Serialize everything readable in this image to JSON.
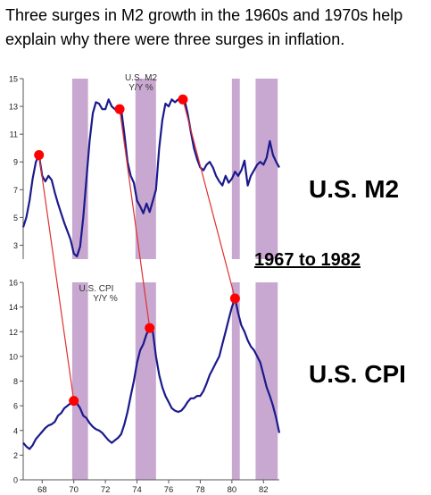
{
  "headline": "Three surges in M2 growth in the 1960s and 1970s help explain why there were three surges in inflation.",
  "labels": {
    "m2": "U.S. M2",
    "cpi": "U.S. CPI",
    "period": "1967 to 1982"
  },
  "colors": {
    "line": "#1a1a8c",
    "recession": "#c8a8d0",
    "marker": "#ff0000",
    "connector": "#e03030"
  },
  "chart_data": [
    {
      "type": "line",
      "panel": "top",
      "annotation": [
        "U.S. M2",
        "Y/Y %"
      ],
      "ylim": [
        2,
        15
      ],
      "yticks": [
        3,
        5,
        7,
        9,
        11,
        13,
        15
      ],
      "xlim": [
        66.8,
        83
      ],
      "recession_bands": [
        [
          69.9,
          70.9
        ],
        [
          73.9,
          75.2
        ],
        [
          80.0,
          80.5
        ],
        [
          81.5,
          82.9
        ]
      ],
      "series": [
        {
          "x": [
            66.8,
            67.0,
            67.2,
            67.4,
            67.6,
            67.8,
            68.0,
            68.2,
            68.4,
            68.6,
            68.8,
            69.0,
            69.2,
            69.4,
            69.6,
            69.8,
            70.0,
            70.2,
            70.4,
            70.6,
            70.8,
            71.0,
            71.2,
            71.4,
            71.6,
            71.8,
            72.0,
            72.2,
            72.4,
            72.6,
            72.8,
            73.0,
            73.2,
            73.4,
            73.6,
            73.8,
            74.0,
            74.2,
            74.4,
            74.6,
            74.8,
            75.0,
            75.2,
            75.4,
            75.6,
            75.8,
            76.0,
            76.2,
            76.4,
            76.6,
            76.8,
            77.0,
            77.2,
            77.4,
            77.6,
            77.8,
            78.0,
            78.2,
            78.4,
            78.6,
            78.8,
            79.0,
            79.2,
            79.4,
            79.6,
            79.8,
            80.0,
            80.2,
            80.4,
            80.6,
            80.8,
            81.0,
            81.2,
            81.4,
            81.6,
            81.8,
            82.0,
            82.2,
            82.4,
            82.6,
            82.8,
            83.0
          ],
          "y": [
            4.3,
            5.0,
            6.2,
            7.8,
            9.0,
            9.5,
            8.0,
            7.6,
            8.0,
            7.7,
            6.8,
            6.0,
            5.3,
            4.6,
            4.0,
            3.4,
            2.4,
            2.2,
            2.9,
            5.0,
            7.8,
            10.5,
            12.5,
            13.3,
            13.2,
            12.8,
            12.8,
            13.5,
            13.0,
            12.8,
            12.7,
            12.8,
            11.0,
            9.0,
            8.0,
            7.5,
            6.2,
            5.8,
            5.3,
            6.0,
            5.4,
            6.2,
            7.0,
            10.0,
            12.0,
            13.2,
            13.0,
            13.5,
            13.3,
            13.5,
            13.6,
            13.5,
            12.5,
            11.2,
            10.0,
            9.2,
            8.6,
            8.4,
            8.8,
            9.0,
            8.6,
            8.0,
            7.6,
            7.3,
            8.0,
            7.5,
            7.8,
            8.3,
            8.0,
            8.4,
            9.1,
            7.3,
            8.0,
            8.4,
            8.8,
            9.0,
            8.8,
            9.3,
            10.5,
            9.5,
            9.0,
            8.6
          ]
        }
      ],
      "highlights": [
        {
          "x": 67.8,
          "y": 9.5
        },
        {
          "x": 72.9,
          "y": 12.8
        },
        {
          "x": 76.9,
          "y": 13.5
        }
      ]
    },
    {
      "type": "line",
      "panel": "bottom",
      "annotation": [
        "U.S. CPI",
        "Y/Y %"
      ],
      "ylim": [
        0,
        16
      ],
      "yticks": [
        0,
        2,
        4,
        6,
        8,
        10,
        12,
        14,
        16
      ],
      "xlim": [
        66.8,
        83
      ],
      "xticks": [
        68,
        70,
        72,
        74,
        76,
        78,
        80,
        82
      ],
      "recession_bands": [
        [
          69.9,
          70.9
        ],
        [
          73.9,
          75.2
        ],
        [
          80.0,
          80.5
        ],
        [
          81.5,
          82.9
        ]
      ],
      "series": [
        {
          "x": [
            66.8,
            67.0,
            67.2,
            67.4,
            67.6,
            67.8,
            68.0,
            68.2,
            68.4,
            68.6,
            68.8,
            69.0,
            69.2,
            69.4,
            69.6,
            69.8,
            70.0,
            70.2,
            70.4,
            70.6,
            70.8,
            71.0,
            71.2,
            71.4,
            71.6,
            71.8,
            72.0,
            72.2,
            72.4,
            72.6,
            72.8,
            73.0,
            73.2,
            73.4,
            73.6,
            73.8,
            74.0,
            74.2,
            74.4,
            74.6,
            74.8,
            75.0,
            75.2,
            75.4,
            75.6,
            75.8,
            76.0,
            76.2,
            76.4,
            76.6,
            76.8,
            77.0,
            77.2,
            77.4,
            77.6,
            77.8,
            78.0,
            78.2,
            78.4,
            78.6,
            78.8,
            79.0,
            79.2,
            79.4,
            79.6,
            79.8,
            80.0,
            80.2,
            80.4,
            80.6,
            80.8,
            81.0,
            81.2,
            81.4,
            81.6,
            81.8,
            82.0,
            82.2,
            82.4,
            82.6,
            82.8,
            83.0
          ],
          "y": [
            3.0,
            2.7,
            2.5,
            2.8,
            3.3,
            3.6,
            3.9,
            4.2,
            4.4,
            4.5,
            4.7,
            5.2,
            5.4,
            5.8,
            6.0,
            6.2,
            6.4,
            6.2,
            5.8,
            5.2,
            5.0,
            4.6,
            4.3,
            4.1,
            4.0,
            3.8,
            3.5,
            3.2,
            3.0,
            3.2,
            3.4,
            3.7,
            4.5,
            5.5,
            6.8,
            8.0,
            9.5,
            10.5,
            11.0,
            11.8,
            12.3,
            12.0,
            10.0,
            8.5,
            7.5,
            6.8,
            6.3,
            5.8,
            5.6,
            5.5,
            5.6,
            5.9,
            6.3,
            6.6,
            6.6,
            6.8,
            6.8,
            7.2,
            7.8,
            8.5,
            9.0,
            9.5,
            10.0,
            11.0,
            12.0,
            13.0,
            14.0,
            14.7,
            13.5,
            12.5,
            12.0,
            11.3,
            10.8,
            10.5,
            10.0,
            9.5,
            8.5,
            7.5,
            6.8,
            6.0,
            5.0,
            3.8
          ]
        }
      ],
      "highlights": [
        {
          "x": 70.0,
          "y": 6.4
        },
        {
          "x": 74.8,
          "y": 12.3
        },
        {
          "x": 80.2,
          "y": 14.7
        }
      ]
    }
  ]
}
